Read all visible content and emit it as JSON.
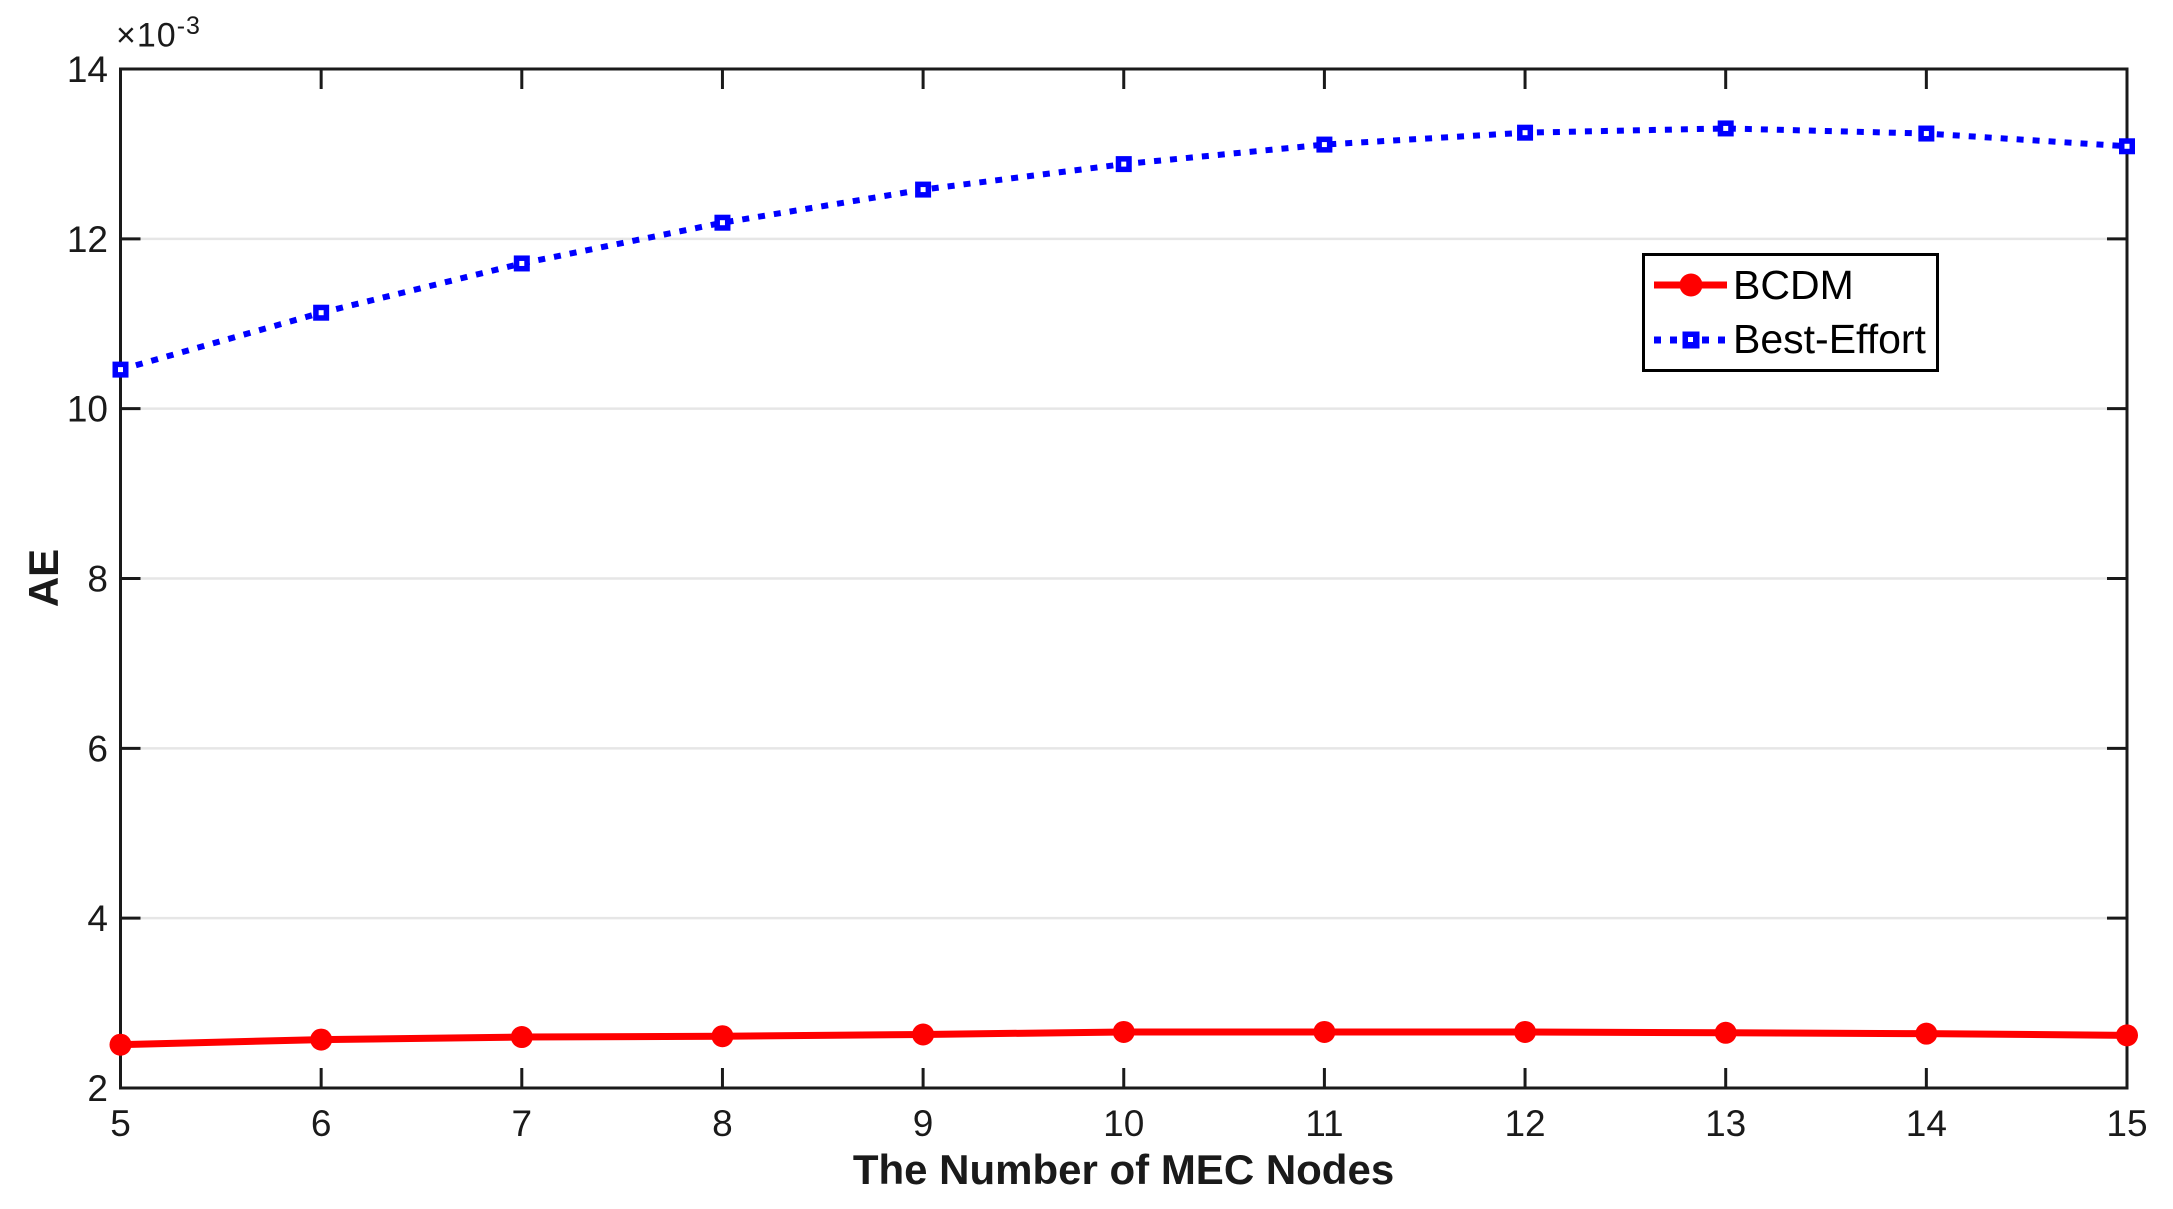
{
  "chart_data": {
    "type": "line",
    "title": "",
    "xlabel": "The Number of MEC Nodes",
    "ylabel": "AE",
    "y_axis_multiplier": {
      "base": "×10",
      "exponent": "-3"
    },
    "x": [
      5,
      6,
      7,
      8,
      9,
      10,
      11,
      12,
      13,
      14,
      15
    ],
    "series": [
      {
        "name": "BCDM",
        "color": "#FF0000",
        "line_style": "solid",
        "line_width": 7,
        "marker": "circle",
        "values": [
          2.51,
          2.57,
          2.6,
          2.61,
          2.63,
          2.66,
          2.66,
          2.66,
          2.65,
          2.64,
          2.62
        ]
      },
      {
        "name": "Best-Effort",
        "color": "#0000FF",
        "line_style": "dotted",
        "line_width": 6,
        "marker": "square",
        "values": [
          10.46,
          11.13,
          11.71,
          12.19,
          12.58,
          12.88,
          13.11,
          13.25,
          13.3,
          13.24,
          13.09
        ]
      }
    ],
    "xlim": [
      5,
      15
    ],
    "ylim": [
      2,
      14
    ],
    "xticks": [
      5,
      6,
      7,
      8,
      9,
      10,
      11,
      12,
      13,
      14,
      15
    ],
    "yticks": [
      2,
      4,
      6,
      8,
      10,
      12,
      14
    ],
    "grid": "horizontal",
    "legend_position": "upper-right",
    "colors": {
      "grid": "#E6E6E6",
      "axis": "#1A1A1A",
      "tick_text": "#1A1A1A",
      "background": "#FFFFFF"
    }
  }
}
